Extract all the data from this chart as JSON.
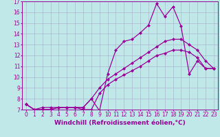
{
  "xlabel": "Windchill (Refroidissement éolien,°C)",
  "background_color": "#c0e8e8",
  "line_color": "#990099",
  "series": [
    {
      "x": [
        0,
        1,
        2,
        3,
        4,
        5,
        6,
        7,
        8,
        9,
        10,
        11,
        12,
        13,
        14,
        15,
        16,
        17,
        18,
        19,
        20,
        21,
        22,
        23
      ],
      "y": [
        7.5,
        7.0,
        7.0,
        7.0,
        7.2,
        7.2,
        7.2,
        7.2,
        8.0,
        6.9,
        10.3,
        12.5,
        13.3,
        13.5,
        14.1,
        14.8,
        16.8,
        15.6,
        16.5,
        14.7,
        10.3,
        11.5,
        10.8,
        10.8
      ]
    },
    {
      "x": [
        0,
        1,
        2,
        3,
        4,
        5,
        6,
        7,
        8,
        9,
        10,
        11,
        12,
        13,
        14,
        15,
        16,
        17,
        18,
        19,
        20,
        21,
        22,
        23
      ],
      "y": [
        7.5,
        7.0,
        7.0,
        7.0,
        7.2,
        7.2,
        7.2,
        7.2,
        8.0,
        9.0,
        9.8,
        10.3,
        10.8,
        11.3,
        11.8,
        12.3,
        12.8,
        13.3,
        13.5,
        13.5,
        13.0,
        12.5,
        11.5,
        10.8
      ]
    },
    {
      "x": [
        0,
        1,
        2,
        3,
        4,
        5,
        6,
        7,
        8,
        9,
        10,
        11,
        12,
        13,
        14,
        15,
        16,
        17,
        18,
        19,
        20,
        21,
        22,
        23
      ],
      "y": [
        7.5,
        7.0,
        7.2,
        7.2,
        7.2,
        7.2,
        7.2,
        7.0,
        7.0,
        8.5,
        9.3,
        9.8,
        10.2,
        10.6,
        11.0,
        11.5,
        12.0,
        12.2,
        12.5,
        12.5,
        12.3,
        11.8,
        10.8,
        10.8
      ]
    }
  ],
  "xlim": [
    -0.5,
    23.5
  ],
  "ylim": [
    7,
    17
  ],
  "yticks": [
    7,
    8,
    9,
    10,
    11,
    12,
    13,
    14,
    15,
    16,
    17
  ],
  "xticks": [
    0,
    1,
    2,
    3,
    4,
    5,
    6,
    7,
    8,
    9,
    10,
    11,
    12,
    13,
    14,
    15,
    16,
    17,
    18,
    19,
    20,
    21,
    22,
    23
  ],
  "grid_color": "#aaaacc",
  "marker": "D",
  "markersize": 2,
  "linewidth": 0.9,
  "tick_fontsize": 5.5,
  "xlabel_fontsize": 6.5
}
